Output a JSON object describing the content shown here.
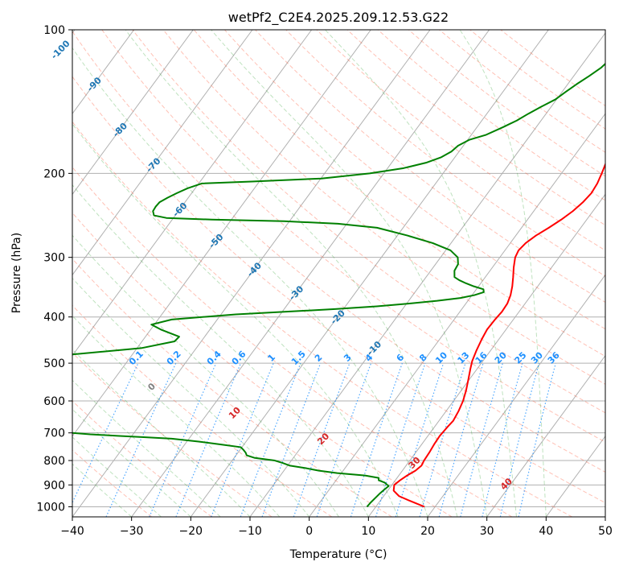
{
  "chart_data": {
    "type": "line",
    "title": "wetPf2_C2E4.2025.209.12.53.G22",
    "xlabel": "Temperature (°C)",
    "ylabel": "Pressure (hPa)",
    "xlim": [
      -40,
      50
    ],
    "ylim": [
      1050,
      100
    ],
    "y_scale": "log",
    "x_ticks": [
      -40,
      -30,
      -20,
      -10,
      0,
      10,
      20,
      30,
      40,
      50
    ],
    "y_ticks": [
      100,
      200,
      300,
      400,
      500,
      600,
      700,
      800,
      900,
      1000
    ],
    "grid": "horizontal",
    "series": [
      {
        "color": "#ff0000",
        "points": [
          [
            18.2,
            1000
          ],
          [
            14.8,
            970
          ],
          [
            12.6,
            950
          ],
          [
            11.0,
            925
          ],
          [
            10.4,
            900
          ],
          [
            10.8,
            880
          ],
          [
            11.4,
            860
          ],
          [
            12.2,
            840
          ],
          [
            12.6,
            820
          ],
          [
            12.4,
            800
          ],
          [
            12.3,
            770
          ],
          [
            12.1,
            740
          ],
          [
            12.0,
            710
          ],
          [
            12.2,
            680
          ],
          [
            12.4,
            660
          ],
          [
            12.1,
            630
          ],
          [
            11.6,
            600
          ],
          [
            10.8,
            570
          ],
          [
            9.8,
            540
          ],
          [
            8.9,
            515
          ],
          [
            8.2,
            495
          ],
          [
            7.6,
            470
          ],
          [
            7.1,
            445
          ],
          [
            6.8,
            425
          ],
          [
            6.9,
            405
          ],
          [
            7.1,
            390
          ],
          [
            7.0,
            375
          ],
          [
            6.5,
            360
          ],
          [
            5.7,
            345
          ],
          [
            4.7,
            330
          ],
          [
            3.6,
            315
          ],
          [
            2.6,
            300
          ],
          [
            2.3,
            290
          ],
          [
            2.6,
            280
          ],
          [
            3.4,
            270
          ],
          [
            4.6,
            260
          ],
          [
            5.7,
            250
          ],
          [
            6.6,
            240
          ],
          [
            7.2,
            230
          ],
          [
            7.5,
            220
          ],
          [
            7.3,
            210
          ],
          [
            6.8,
            200
          ],
          [
            6.2,
            190
          ],
          [
            6.1,
            180
          ],
          [
            6.2,
            170
          ],
          [
            6.5,
            160
          ],
          [
            6.9,
            150
          ],
          [
            7.6,
            140
          ],
          [
            8.2,
            130
          ],
          [
            9.0,
            125
          ],
          [
            10.2,
            120
          ],
          [
            11.7,
            115
          ],
          [
            12.7,
            110
          ],
          [
            13.5,
            105
          ],
          [
            14.1,
            100
          ]
        ]
      },
      {
        "color": "#008000",
        "points": [
          [
            8.5,
            1000
          ],
          [
            8.6,
            980
          ],
          [
            8.8,
            960
          ],
          [
            9.0,
            940
          ],
          [
            9.3,
            920
          ],
          [
            9.6,
            905
          ],
          [
            8.5,
            890
          ],
          [
            7.2,
            880
          ],
          [
            6.9,
            870
          ],
          [
            4.3,
            860
          ],
          [
            -0.7,
            850
          ],
          [
            -4.1,
            840
          ],
          [
            -6.6,
            830
          ],
          [
            -9.6,
            820
          ],
          [
            -11.1,
            810
          ],
          [
            -12.8,
            800
          ],
          [
            -16.5,
            790
          ],
          [
            -18.2,
            780
          ],
          [
            -18.7,
            770
          ],
          [
            -19.4,
            760
          ],
          [
            -20.2,
            750
          ],
          [
            -24.0,
            740
          ],
          [
            -28.0,
            730
          ],
          [
            -32.9,
            720
          ],
          [
            -37.5,
            715
          ],
          [
            -42.4,
            710
          ],
          [
            -47.2,
            705
          ],
          [
            -50.6,
            700
          ],
          [
            -54.8,
            695
          ],
          [
            -60.0,
            690
          ],
          [
            -64.1,
            680
          ],
          [
            -68.0,
            670
          ],
          [
            -71.9,
            660
          ],
          [
            -75.6,
            650
          ],
          [
            -78.9,
            640
          ],
          [
            -82.1,
            630
          ],
          [
            -84.6,
            620
          ],
          [
            -87.2,
            610
          ],
          [
            -89.1,
            600
          ],
          [
            -91.1,
            590
          ],
          [
            -93.1,
            580
          ],
          [
            -93.6,
            570
          ],
          [
            -91.4,
            560
          ],
          [
            -88.9,
            550
          ],
          [
            -87.4,
            540
          ],
          [
            -86.5,
            530
          ],
          [
            -85.1,
            520
          ],
          [
            -82.1,
            510
          ],
          [
            -78.2,
            500
          ],
          [
            -70.6,
            490
          ],
          [
            -60.6,
            480
          ],
          [
            -49.3,
            465
          ],
          [
            -44.5,
            450
          ],
          [
            -44.3,
            440
          ],
          [
            -48.3,
            425
          ],
          [
            -50.5,
            415
          ],
          [
            -47.7,
            405
          ],
          [
            -37.5,
            395
          ],
          [
            -29.3,
            390
          ],
          [
            -21.4,
            385
          ],
          [
            -14.7,
            380
          ],
          [
            -9.7,
            375
          ],
          [
            -5.2,
            370
          ],
          [
            -1.6,
            365
          ],
          [
            0.4,
            360
          ],
          [
            1.6,
            355
          ],
          [
            1.2,
            350
          ],
          [
            -0.8,
            345
          ],
          [
            -2.5,
            340
          ],
          [
            -4.0,
            335
          ],
          [
            -5.2,
            330
          ],
          [
            -6.0,
            320
          ],
          [
            -6.2,
            310
          ],
          [
            -7.1,
            300
          ],
          [
            -9.2,
            290
          ],
          [
            -13.1,
            280
          ],
          [
            -18.3,
            270
          ],
          [
            -24.4,
            260
          ],
          [
            -31.5,
            255
          ],
          [
            -40.9,
            252
          ],
          [
            -53.3,
            250
          ],
          [
            -61.2,
            248
          ],
          [
            -63.6,
            245
          ],
          [
            -64.3,
            240
          ],
          [
            -64.4,
            235
          ],
          [
            -64.3,
            230
          ],
          [
            -63.5,
            225
          ],
          [
            -62.5,
            220
          ],
          [
            -61.3,
            215
          ],
          [
            -59.5,
            210
          ],
          [
            -51.3,
            208
          ],
          [
            -39.9,
            205
          ],
          [
            -32.4,
            200
          ],
          [
            -27.3,
            195
          ],
          [
            -24.2,
            190
          ],
          [
            -22.3,
            185
          ],
          [
            -21.3,
            180
          ],
          [
            -20.9,
            175
          ],
          [
            -19.7,
            170
          ],
          [
            -17.5,
            166
          ],
          [
            -15.6,
            160
          ],
          [
            -14.1,
            155
          ],
          [
            -13.0,
            150
          ],
          [
            -11.7,
            145
          ],
          [
            -10.2,
            140
          ],
          [
            -9.4,
            135
          ],
          [
            -8.5,
            130
          ],
          [
            -7.4,
            125
          ],
          [
            -6.4,
            120
          ],
          [
            -5.9,
            115
          ],
          [
            -4.9,
            110
          ],
          [
            -3.8,
            105
          ],
          [
            -2.7,
            100
          ]
        ]
      }
    ],
    "isotherm_labels": [
      "-100",
      "-90",
      "-80",
      "-70",
      "-60",
      "-50",
      "-40",
      "-30",
      "-20",
      "-10"
    ],
    "mixing_ratio_labels": [
      "0.1",
      "0.2",
      "0.4",
      "0.6",
      "1",
      "1.5",
      "2",
      "3",
      "4",
      "6",
      "8",
      "10",
      "13",
      "16",
      "20",
      "25",
      "30",
      "36"
    ],
    "dry_adiabat_labels": [
      "0",
      "10",
      "20",
      "30",
      "40"
    ]
  },
  "colors": {
    "temperature": "#ff0000",
    "dewpoint": "#008000",
    "isotherm_label": "#1f77b4",
    "mixing_ratio": "#1e90ff",
    "dry_adiabat": "#ff6347",
    "moist_adiabat": "#2ca02c",
    "adiabat_label_zero": "#808080",
    "adiabat_label": "#d62728",
    "grid": "#b0b0b0"
  }
}
